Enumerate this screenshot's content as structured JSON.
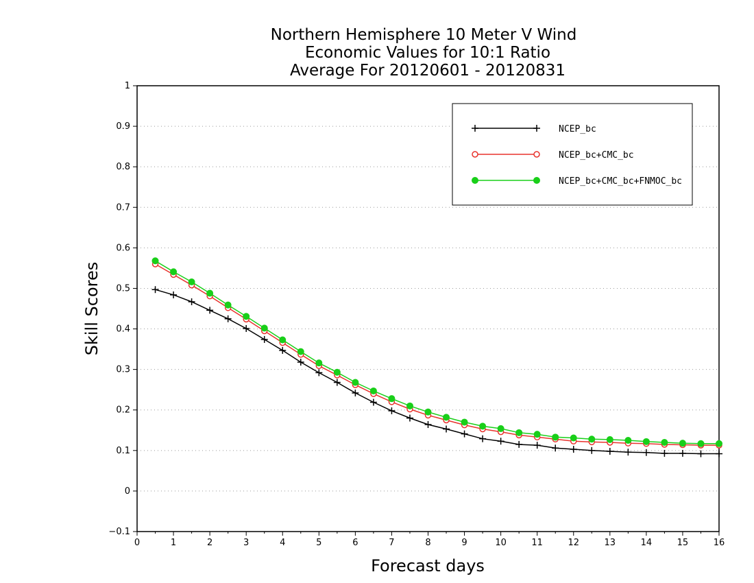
{
  "chart_data": {
    "type": "line",
    "title_lines": [
      "Northern Hemisphere 10 Meter V Wind",
      "Economic Values for 10:1 Ratio",
      "Average For 20120601 - 20120831"
    ],
    "xlabel": "Forecast days",
    "ylabel": "Skill Scores",
    "xlim": [
      0,
      16
    ],
    "ylim": [
      -0.1,
      1
    ],
    "xticks": [
      0,
      1,
      2,
      3,
      4,
      5,
      6,
      7,
      8,
      9,
      10,
      11,
      12,
      13,
      14,
      15,
      16
    ],
    "yticks": [
      -0.1,
      0,
      0.1,
      0.2,
      0.3,
      0.4,
      0.5,
      0.6,
      0.7,
      0.8,
      0.9,
      1
    ],
    "ytick_labels": [
      "−0.1",
      "0",
      "0.1",
      "0.2",
      "0.3",
      "0.4",
      "0.5",
      "0.6",
      "0.7",
      "0.8",
      "0.9",
      "1"
    ],
    "grid": "horizontal dotted",
    "legend_position": "top-right",
    "x": [
      0.5,
      1,
      1.5,
      2,
      2.5,
      3,
      3.5,
      4,
      4.5,
      5,
      5.5,
      6,
      6.5,
      7,
      7.5,
      8,
      8.5,
      9,
      9.5,
      10,
      10.5,
      11,
      11.5,
      12,
      12.5,
      13,
      13.5,
      14,
      14.5,
      15,
      15.5,
      16
    ],
    "series": [
      {
        "name": "NCEP_bc",
        "color": "#000000",
        "marker": "plus",
        "values": [
          0.497,
          0.484,
          0.467,
          0.446,
          0.425,
          0.401,
          0.374,
          0.347,
          0.318,
          0.292,
          0.268,
          0.242,
          0.219,
          0.198,
          0.18,
          0.164,
          0.153,
          0.141,
          0.129,
          0.123,
          0.115,
          0.113,
          0.106,
          0.103,
          0.1,
          0.098,
          0.096,
          0.095,
          0.093,
          0.093,
          0.092,
          0.092
        ]
      },
      {
        "name": "NCEP_bc+CMC_bc",
        "color": "#e8322c",
        "marker": "open-circle",
        "values": [
          0.56,
          0.534,
          0.508,
          0.481,
          0.452,
          0.424,
          0.395,
          0.366,
          0.337,
          0.309,
          0.286,
          0.262,
          0.24,
          0.22,
          0.202,
          0.187,
          0.175,
          0.163,
          0.153,
          0.146,
          0.138,
          0.133,
          0.128,
          0.123,
          0.121,
          0.12,
          0.118,
          0.117,
          0.115,
          0.114,
          0.113,
          0.113
        ]
      },
      {
        "name": "NCEP_bc+CMC_bc+FNMOC_bc",
        "color": "#19cf19",
        "marker": "filled-circle",
        "values": [
          0.568,
          0.541,
          0.516,
          0.488,
          0.459,
          0.431,
          0.402,
          0.373,
          0.344,
          0.316,
          0.293,
          0.268,
          0.247,
          0.228,
          0.21,
          0.195,
          0.182,
          0.17,
          0.16,
          0.154,
          0.144,
          0.14,
          0.133,
          0.131,
          0.128,
          0.127,
          0.125,
          0.122,
          0.12,
          0.118,
          0.117,
          0.117
        ]
      }
    ]
  }
}
